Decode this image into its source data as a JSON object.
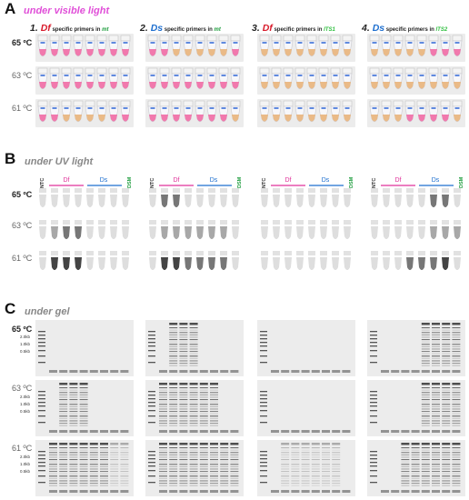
{
  "sections": {
    "A": {
      "letter": "A",
      "title": "under  visible  light"
    },
    "B": {
      "letter": "B",
      "title": "under  UV  light"
    },
    "C": {
      "letter": "C",
      "title": "under  gel"
    }
  },
  "temperatures": [
    "65 ºC",
    "63 ºC",
    "61 ºC"
  ],
  "panels": [
    {
      "num": "1.",
      "target": "Df",
      "mid": "specific  primers  in",
      "region": "mt",
      "target_color": "#d81b2b",
      "region_color": "#1a9b3a"
    },
    {
      "num": "2.",
      "target": "Ds",
      "mid": "specific  primers  in",
      "region": "mt",
      "target_color": "#1e6fcf",
      "region_color": "#1a9b3a"
    },
    {
      "num": "3.",
      "target": "Df",
      "mid": "specific  primers  in",
      "region": "ITS1",
      "target_color": "#d81b2b",
      "region_color": "#2fbf3f"
    },
    {
      "num": "4.",
      "target": "Ds",
      "mid": "specific  primers  in",
      "region": "ITS2",
      "target_color": "#1e6fcf",
      "region_color": "#2fbf3f"
    }
  ],
  "uv_labels": {
    "ntc": "NTC",
    "df": "Df",
    "ds": "Ds",
    "dsm": "DSM"
  },
  "colors": {
    "title_pink": "#e04fd8",
    "df_line": "#e0329a",
    "ds_line": "#1e6fcf",
    "dsm": "#1a9b3a",
    "positive_tube": "#f06aa4",
    "negative_tube": "#e8b27a"
  },
  "gel_ladder": [
    "2.0kb",
    "1.0kb",
    "0.5kb"
  ]
}
